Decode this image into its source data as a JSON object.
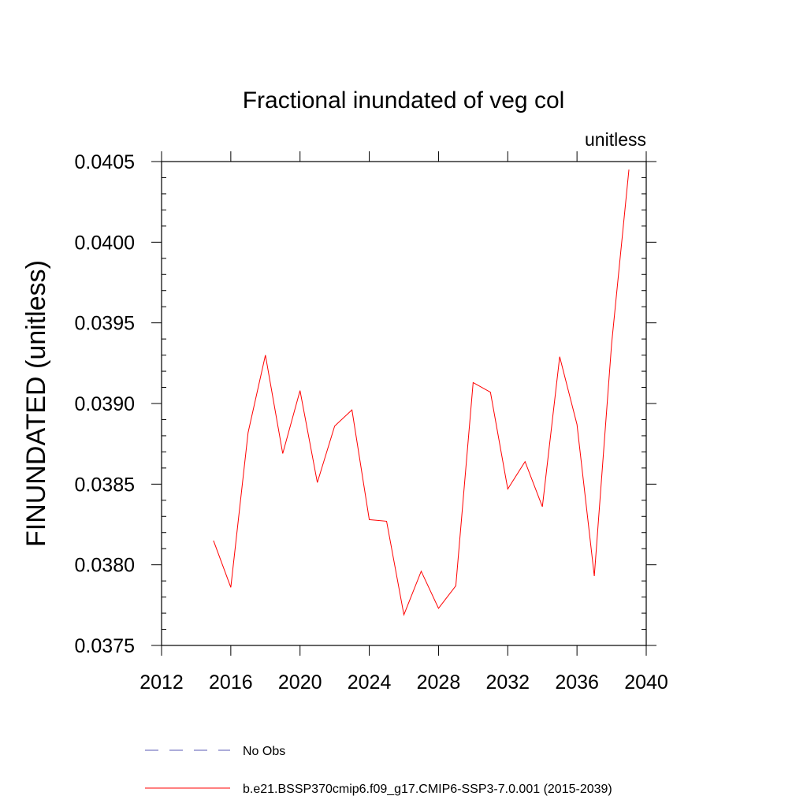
{
  "chart_data": {
    "type": "line",
    "title": "Fractional inundated of veg col",
    "units_label": "unitless",
    "ylabel": "FINUNDATED  (unitless)",
    "xlabel": "",
    "xlim": [
      2012,
      2040
    ],
    "ylim": [
      0.0375,
      0.0405
    ],
    "x_ticks": [
      2012,
      2016,
      2020,
      2024,
      2028,
      2032,
      2036,
      2040
    ],
    "y_ticks": [
      "0.0375",
      "0.0380",
      "0.0385",
      "0.0390",
      "0.0395",
      "0.0400",
      "0.0405"
    ],
    "grid": false,
    "legend_position": "bottom",
    "series": [
      {
        "name": "b.e21.BSSP370cmip6.f09_g17.CMIP6-SSP3-7.0.001 (2015-2039)",
        "color": "#ff0000",
        "style": "solid",
        "x": [
          2015,
          2016,
          2017,
          2018,
          2019,
          2020,
          2021,
          2022,
          2023,
          2024,
          2025,
          2026,
          2027,
          2028,
          2029,
          2030,
          2031,
          2032,
          2033,
          2034,
          2035,
          2036,
          2037,
          2038,
          2039
        ],
        "values": [
          0.03815,
          0.03786,
          0.03882,
          0.0393,
          0.03869,
          0.03908,
          0.03851,
          0.03886,
          0.03896,
          0.03828,
          0.03827,
          0.03769,
          0.03796,
          0.03773,
          0.03787,
          0.03913,
          0.03907,
          0.03847,
          0.03864,
          0.03836,
          0.03929,
          0.03887,
          0.03793,
          0.03937,
          0.04045
        ]
      }
    ],
    "legend": [
      {
        "label": "No Obs",
        "color": "#5a5ab4",
        "style": "dashed"
      },
      {
        "label": "b.e21.BSSP370cmip6.f09_g17.CMIP6-SSP3-7.0.001 (2015-2039)",
        "color": "#ff0000",
        "style": "solid"
      }
    ]
  }
}
